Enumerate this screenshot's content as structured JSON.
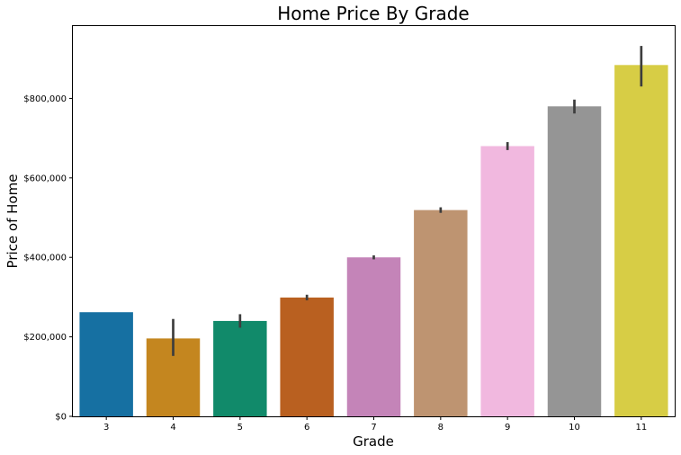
{
  "chart_data": {
    "type": "bar",
    "title": "Home Price By Grade",
    "xlabel": "Grade",
    "ylabel": "Price of Home",
    "categories": [
      "3",
      "4",
      "5",
      "6",
      "7",
      "8",
      "9",
      "10",
      "11"
    ],
    "values": [
      262000,
      196000,
      240000,
      299000,
      400000,
      519000,
      680000,
      780000,
      884000
    ],
    "error_low": [
      262000,
      152000,
      223000,
      292000,
      395000,
      512000,
      670000,
      762000,
      830000
    ],
    "error_high": [
      262000,
      245000,
      257000,
      306000,
      405000,
      526000,
      690000,
      797000,
      932000
    ],
    "colors": [
      "#1670a2",
      "#c4861f",
      "#118a6a",
      "#b96020",
      "#c484b8",
      "#be9471",
      "#f1b8df",
      "#959595",
      "#d7cd45"
    ],
    "error_color": "#3d3d3d",
    "ylim": [
      0,
      982000
    ],
    "yticks": [
      0,
      200000,
      400000,
      600000,
      800000
    ],
    "ytick_labels": [
      "$0",
      "$200,000",
      "$400,000",
      "$600,000",
      "$800,000"
    ],
    "grid": false,
    "legend": "none"
  }
}
